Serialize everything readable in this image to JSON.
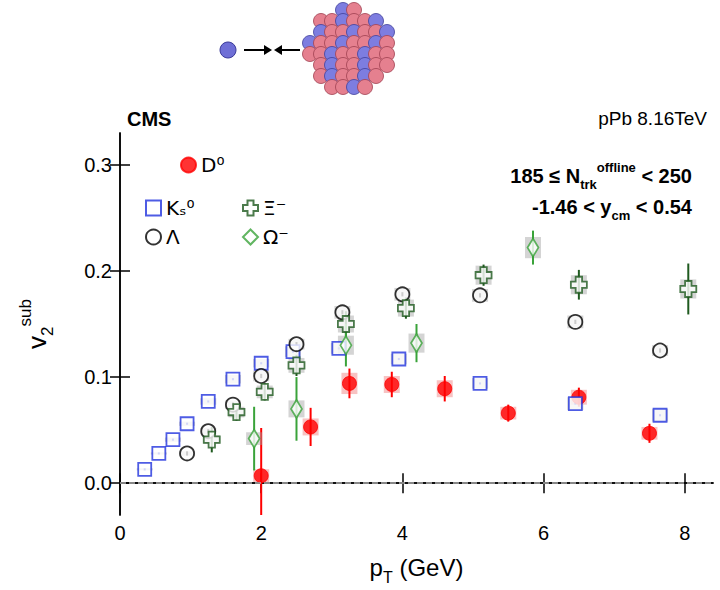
{
  "chart_data": {
    "type": "scatter",
    "experiment_label": "CMS",
    "system_label": "pPb 8.16TeV",
    "annotations": [
      {
        "text": "185 ≤ N",
        "sup": "offline",
        "sub": "trk",
        "after": " < 250"
      },
      {
        "text": "-1.46 < y",
        "sub": "cm",
        "after": " < 0.54"
      }
    ],
    "x_label": {
      "text": "p",
      "sub": "T",
      "after": " (GeV)"
    },
    "y_label": {
      "text": "v",
      "sub": "2",
      "sup": "sub"
    },
    "xlim": [
      0,
      8.4
    ],
    "ylim": [
      -0.03,
      0.33
    ],
    "xticks": [
      0,
      2,
      4,
      6,
      8
    ],
    "yticks": [
      {
        "value": 0,
        "label": "0.0"
      },
      0.1,
      0.2,
      0.3
    ],
    "grid": false,
    "hline": 0,
    "legend": "top-left",
    "series": [
      {
        "name": "D⁰",
        "color": "#ff0000",
        "marker": "circle",
        "x": [
          2.0,
          2.7,
          3.25,
          3.85,
          4.6,
          5.5,
          6.5,
          7.5
        ],
        "values": [
          0.007,
          0.053,
          0.094,
          0.093,
          0.089,
          0.066,
          0.081,
          0.047
        ],
        "errors": [
          0.045,
          0.018,
          0.014,
          0.012,
          0.012,
          0.008,
          0.009,
          0.009
        ],
        "syst": [
          0.006,
          0.008,
          0.01,
          0.008,
          0.008,
          0.006,
          0.007,
          0.006
        ]
      },
      {
        "name": "Kₛ⁰",
        "color": "#2233dd",
        "marker": "open_square",
        "x": [
          0.35,
          0.55,
          0.75,
          0.95,
          1.25,
          1.6,
          2.0,
          2.45,
          3.1,
          3.95,
          5.1,
          6.45,
          7.65
        ],
        "values": [
          0.013,
          0.028,
          0.041,
          0.056,
          0.077,
          0.098,
          0.113,
          0.124,
          0.127,
          0.117,
          0.094,
          0.075,
          0.064
        ],
        "errors": [
          0.001,
          0.001,
          0.001,
          0.001,
          0.001,
          0.001,
          0.001,
          0.001,
          0.001,
          0.001,
          0.001,
          0.001,
          0.001
        ],
        "syst": [
          0.001,
          0.001,
          0.002,
          0.002,
          0.003,
          0.004,
          0.004,
          0.005,
          0.005,
          0.005,
          0.005,
          0.006,
          0.006
        ]
      },
      {
        "name": "Λ",
        "color": "#000000",
        "marker": "open_circle",
        "x": [
          0.95,
          1.25,
          1.6,
          2.0,
          2.5,
          3.15,
          4.0,
          5.1,
          6.45,
          7.65
        ],
        "values": [
          0.028,
          0.049,
          0.074,
          0.101,
          0.131,
          0.161,
          0.178,
          0.177,
          0.152,
          0.125
        ],
        "errors": [
          0.002,
          0.002,
          0.002,
          0.002,
          0.002,
          0.002,
          0.002,
          0.002,
          0.002,
          0.002
        ],
        "syst": [
          0.002,
          0.003,
          0.004,
          0.005,
          0.005,
          0.006,
          0.006,
          0.006,
          0.006,
          0.005
        ]
      },
      {
        "name": "Ξ⁻",
        "color": "#1f5a1f",
        "marker": "open_cross",
        "x": [
          1.3,
          1.65,
          2.05,
          2.5,
          3.2,
          4.05,
          5.15,
          6.5,
          8.05
        ],
        "values": [
          0.041,
          0.067,
          0.086,
          0.111,
          0.15,
          0.165,
          0.196,
          0.187,
          0.183
        ],
        "errors": [
          0.012,
          0.008,
          0.008,
          0.01,
          0.012,
          0.01,
          0.01,
          0.014,
          0.024
        ],
        "syst": [
          0.004,
          0.005,
          0.006,
          0.007,
          0.008,
          0.008,
          0.009,
          0.009,
          0.009
        ]
      },
      {
        "name": "Ω⁻",
        "color": "#3aa33a",
        "marker": "open_diamond",
        "x": [
          1.9,
          2.5,
          3.2,
          4.2,
          5.85
        ],
        "values": [
          0.042,
          0.07,
          0.13,
          0.132,
          0.222
        ],
        "errors": [
          0.03,
          0.03,
          0.02,
          0.018,
          0.016
        ],
        "syst": [
          0.006,
          0.008,
          0.009,
          0.009,
          0.01
        ]
      }
    ]
  }
}
